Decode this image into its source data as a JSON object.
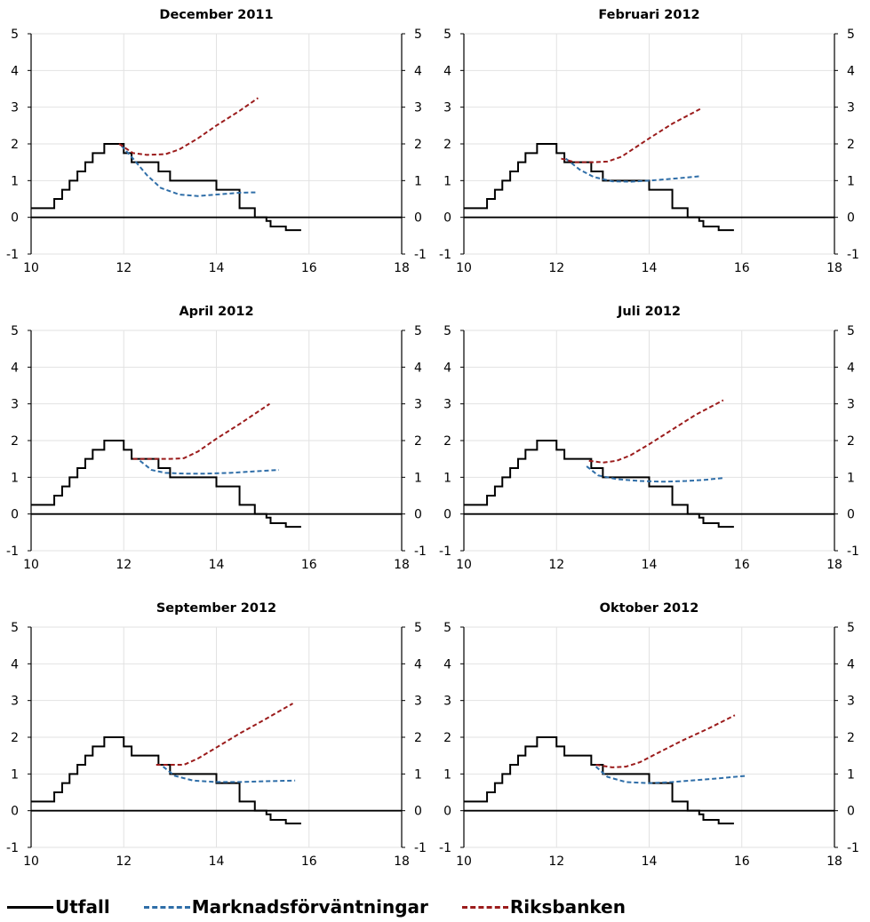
{
  "colors": {
    "utfall": "#000000",
    "market": "#2f6ea8",
    "riksbanken": "#9b1c1c",
    "grid": "#e2e2e2"
  },
  "legend": {
    "utfall": "Utfall",
    "market": "Marknadsförväntningar",
    "riksbanken": "Riksbanken"
  },
  "outcome": [
    [
      10.0,
      0.25
    ],
    [
      10.5,
      0.5
    ],
    [
      10.67,
      0.75
    ],
    [
      10.83,
      1.0
    ],
    [
      11.0,
      1.25
    ],
    [
      11.17,
      1.5
    ],
    [
      11.33,
      1.75
    ],
    [
      11.58,
      2.0
    ],
    [
      12.0,
      1.75
    ],
    [
      12.17,
      1.5
    ],
    [
      12.75,
      1.25
    ],
    [
      13.0,
      1.0
    ],
    [
      14.0,
      0.75
    ],
    [
      14.5,
      0.25
    ],
    [
      14.83,
      0.0
    ],
    [
      15.08,
      -0.1
    ],
    [
      15.17,
      -0.25
    ],
    [
      15.5,
      -0.35
    ],
    [
      15.83,
      -0.35
    ]
  ],
  "chart_data": [
    {
      "type": "line",
      "title": "December 2011",
      "xlim": [
        10,
        18
      ],
      "ylim": [
        -1,
        5
      ],
      "x_ticks": [
        10,
        12,
        14,
        16,
        18
      ],
      "y_ticks": [
        -1,
        0,
        1,
        2,
        3,
        4,
        5
      ],
      "series": [
        {
          "name": "Utfall",
          "style": "step",
          "color": "#000000"
        },
        {
          "name": "Marknadsförväntningar",
          "style": "dashed",
          "color": "#2f6ea8",
          "points": [
            [
              11.95,
              1.95
            ],
            [
              12.2,
              1.6
            ],
            [
              12.5,
              1.15
            ],
            [
              12.8,
              0.8
            ],
            [
              13.2,
              0.62
            ],
            [
              13.6,
              0.58
            ],
            [
              14.0,
              0.62
            ],
            [
              14.5,
              0.67
            ],
            [
              14.85,
              0.68
            ]
          ]
        },
        {
          "name": "Riksbanken",
          "style": "dashed",
          "color": "#9b1c1c",
          "points": [
            [
              11.9,
              2.0
            ],
            [
              12.2,
              1.75
            ],
            [
              12.5,
              1.7
            ],
            [
              12.9,
              1.72
            ],
            [
              13.2,
              1.85
            ],
            [
              13.6,
              2.15
            ],
            [
              14.0,
              2.5
            ],
            [
              14.5,
              2.9
            ],
            [
              14.9,
              3.25
            ]
          ]
        }
      ]
    },
    {
      "type": "line",
      "title": "Februari 2012",
      "xlim": [
        10,
        18
      ],
      "ylim": [
        -1,
        5
      ],
      "x_ticks": [
        10,
        12,
        14,
        16,
        18
      ],
      "y_ticks": [
        -1,
        0,
        1,
        2,
        3,
        4,
        5
      ],
      "series": [
        {
          "name": "Utfall",
          "style": "step",
          "color": "#000000"
        },
        {
          "name": "Marknadsförväntningar",
          "style": "dashed",
          "color": "#2f6ea8",
          "points": [
            [
              12.2,
              1.6
            ],
            [
              12.5,
              1.3
            ],
            [
              12.8,
              1.1
            ],
            [
              13.2,
              0.98
            ],
            [
              13.6,
              0.97
            ],
            [
              14.0,
              1.0
            ],
            [
              14.5,
              1.05
            ],
            [
              15.1,
              1.12
            ]
          ]
        },
        {
          "name": "Riksbanken",
          "style": "dashed",
          "color": "#9b1c1c",
          "points": [
            [
              12.1,
              1.6
            ],
            [
              12.4,
              1.5
            ],
            [
              12.8,
              1.5
            ],
            [
              13.1,
              1.52
            ],
            [
              13.4,
              1.65
            ],
            [
              13.7,
              1.9
            ],
            [
              14.0,
              2.15
            ],
            [
              14.5,
              2.55
            ],
            [
              15.1,
              2.95
            ]
          ]
        }
      ]
    },
    {
      "type": "line",
      "title": "April 2012",
      "xlim": [
        10,
        18
      ],
      "ylim": [
        -1,
        5
      ],
      "x_ticks": [
        10,
        12,
        14,
        16,
        18
      ],
      "y_ticks": [
        -1,
        0,
        1,
        2,
        3,
        4,
        5
      ],
      "series": [
        {
          "name": "Utfall",
          "style": "step",
          "color": "#000000"
        },
        {
          "name": "Marknadsförväntningar",
          "style": "dashed",
          "color": "#2f6ea8",
          "points": [
            [
              12.35,
              1.45
            ],
            [
              12.6,
              1.2
            ],
            [
              12.9,
              1.12
            ],
            [
              13.3,
              1.1
            ],
            [
              13.8,
              1.1
            ],
            [
              14.3,
              1.12
            ],
            [
              14.8,
              1.16
            ],
            [
              15.35,
              1.2
            ]
          ]
        },
        {
          "name": "Riksbanken",
          "style": "dashed",
          "color": "#9b1c1c",
          "points": [
            [
              12.2,
              1.5
            ],
            [
              12.6,
              1.5
            ],
            [
              13.0,
              1.5
            ],
            [
              13.3,
              1.52
            ],
            [
              13.6,
              1.7
            ],
            [
              14.0,
              2.05
            ],
            [
              14.5,
              2.45
            ],
            [
              15.15,
              3.0
            ]
          ]
        }
      ]
    },
    {
      "type": "line",
      "title": "Juli 2012",
      "xlim": [
        10,
        18
      ],
      "ylim": [
        -1,
        5
      ],
      "x_ticks": [
        10,
        12,
        14,
        16,
        18
      ],
      "y_ticks": [
        -1,
        0,
        1,
        2,
        3,
        4,
        5
      ],
      "series": [
        {
          "name": "Utfall",
          "style": "step",
          "color": "#000000"
        },
        {
          "name": "Marknadsförväntningar",
          "style": "dashed",
          "color": "#2f6ea8",
          "points": [
            [
              12.65,
              1.3
            ],
            [
              12.9,
              1.05
            ],
            [
              13.3,
              0.95
            ],
            [
              13.8,
              0.9
            ],
            [
              14.3,
              0.88
            ],
            [
              14.8,
              0.9
            ],
            [
              15.2,
              0.93
            ],
            [
              15.6,
              0.98
            ]
          ]
        },
        {
          "name": "Riksbanken",
          "style": "dashed",
          "color": "#9b1c1c",
          "points": [
            [
              12.7,
              1.45
            ],
            [
              13.0,
              1.4
            ],
            [
              13.3,
              1.45
            ],
            [
              13.6,
              1.6
            ],
            [
              14.0,
              1.9
            ],
            [
              14.5,
              2.3
            ],
            [
              15.0,
              2.7
            ],
            [
              15.6,
              3.1
            ]
          ]
        }
      ]
    },
    {
      "type": "line",
      "title": "September 2012",
      "xlim": [
        10,
        18
      ],
      "ylim": [
        -1,
        5
      ],
      "x_ticks": [
        10,
        12,
        14,
        16,
        18
      ],
      "y_ticks": [
        -1,
        0,
        1,
        2,
        3,
        4,
        5
      ],
      "series": [
        {
          "name": "Utfall",
          "style": "step",
          "color": "#000000"
        },
        {
          "name": "Marknadsförväntningar",
          "style": "dashed",
          "color": "#2f6ea8",
          "points": [
            [
              12.85,
              1.2
            ],
            [
              13.1,
              0.95
            ],
            [
              13.5,
              0.82
            ],
            [
              14.0,
              0.78
            ],
            [
              14.5,
              0.78
            ],
            [
              15.0,
              0.8
            ],
            [
              15.7,
              0.82
            ]
          ]
        },
        {
          "name": "Riksbanken",
          "style": "dashed",
          "color": "#9b1c1c",
          "points": [
            [
              12.7,
              1.25
            ],
            [
              13.0,
              1.25
            ],
            [
              13.3,
              1.25
            ],
            [
              13.6,
              1.42
            ],
            [
              14.0,
              1.72
            ],
            [
              14.5,
              2.1
            ],
            [
              15.0,
              2.45
            ],
            [
              15.65,
              2.92
            ]
          ]
        }
      ]
    },
    {
      "type": "line",
      "title": "Oktober 2012",
      "xlim": [
        10,
        18
      ],
      "ylim": [
        -1,
        5
      ],
      "x_ticks": [
        10,
        12,
        14,
        16,
        18
      ],
      "y_ticks": [
        -1,
        0,
        1,
        2,
        3,
        4,
        5
      ],
      "series": [
        {
          "name": "Utfall",
          "style": "step",
          "color": "#000000"
        },
        {
          "name": "Marknadsförväntningar",
          "style": "dashed",
          "color": "#2f6ea8",
          "points": [
            [
              12.85,
              1.2
            ],
            [
              13.1,
              0.92
            ],
            [
              13.5,
              0.78
            ],
            [
              14.0,
              0.75
            ],
            [
              14.5,
              0.78
            ],
            [
              15.0,
              0.83
            ],
            [
              15.5,
              0.88
            ],
            [
              16.1,
              0.95
            ]
          ]
        },
        {
          "name": "Riksbanken",
          "style": "dashed",
          "color": "#9b1c1c",
          "points": [
            [
              12.85,
              1.25
            ],
            [
              13.2,
              1.18
            ],
            [
              13.5,
              1.2
            ],
            [
              13.8,
              1.32
            ],
            [
              14.2,
              1.58
            ],
            [
              14.7,
              1.9
            ],
            [
              15.3,
              2.25
            ],
            [
              15.85,
              2.6
            ]
          ]
        }
      ]
    }
  ]
}
